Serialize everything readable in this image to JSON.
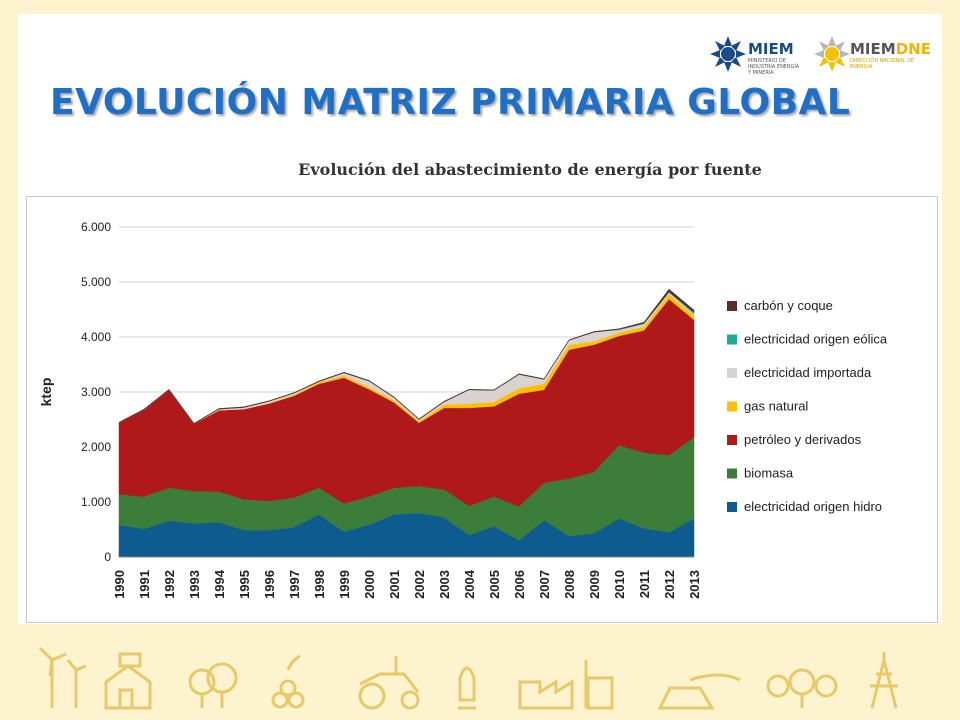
{
  "slide": {
    "title": "EVOLUCIÓN MATRIZ PRIMARIA GLOBAL",
    "logo_miem": "MIEM",
    "logo_miem_sub": "MINISTERIO DE INDUSTRIA ENERGÍA Y MINERÍA",
    "logo_dne_a": "MIEM",
    "logo_dne_b": "DNE",
    "logo_dne_sub": "DIRECCIÓN NACIONAL DE ENERGÍA"
  },
  "colors": {
    "title": "#1f6fc7",
    "hidro": "#0e5c8f",
    "biomasa": "#3c7d3a",
    "petroleo": "#b01919",
    "gas": "#ffc000",
    "importada": "#d9d3cf",
    "eolica": "#1aae96",
    "carbon": "#5a2d2d",
    "frame": "#fdf3cf",
    "deco": "#e8c968"
  },
  "chart_data": {
    "type": "area",
    "title": "Evolución del abastecimiento de energía por fuente",
    "xlabel": "",
    "ylabel": "ktep",
    "ylim": [
      0,
      6000
    ],
    "yticks": [
      0,
      1000,
      2000,
      3000,
      4000,
      5000,
      6000
    ],
    "ytick_labels": [
      "0",
      "1.000",
      "2.000",
      "3.000",
      "4.000",
      "5.000",
      "6.000"
    ],
    "grid": true,
    "stacked": true,
    "legend_position": "right",
    "categories": [
      "1990",
      "1991",
      "1992",
      "1993",
      "1994",
      "1995",
      "1996",
      "1997",
      "1998",
      "1999",
      "2000",
      "2001",
      "2002",
      "2003",
      "2004",
      "2005",
      "2006",
      "2007",
      "2008",
      "2009",
      "2010",
      "2011",
      "2012",
      "2013"
    ],
    "series": [
      {
        "name": "electricidad origen hidro",
        "color": "#0e5c8f",
        "values": [
          580,
          510,
          660,
          610,
          630,
          490,
          490,
          540,
          770,
          460,
          590,
          770,
          800,
          720,
          400,
          560,
          300,
          670,
          380,
          430,
          700,
          520,
          450,
          700
        ]
      },
      {
        "name": "biomasa",
        "color": "#3c7d3a",
        "values": [
          560,
          590,
          600,
          590,
          560,
          560,
          530,
          540,
          490,
          510,
          510,
          490,
          490,
          510,
          530,
          540,
          620,
          680,
          1050,
          1120,
          1330,
          1380,
          1400,
          1480
        ]
      },
      {
        "name": "petróleo y derivados",
        "color": "#b01919",
        "values": [
          1300,
          1580,
          1780,
          1220,
          1480,
          1640,
          1770,
          1850,
          1890,
          2290,
          1950,
          1550,
          1150,
          1480,
          1780,
          1640,
          2050,
          1690,
          2340,
          2310,
          1990,
          2220,
          2840,
          2130
        ]
      },
      {
        "name": "gas natural",
        "color": "#ffc000",
        "values": [
          0,
          0,
          0,
          0,
          0,
          0,
          10,
          20,
          30,
          40,
          40,
          40,
          30,
          60,
          80,
          80,
          100,
          110,
          90,
          60,
          60,
          70,
          90,
          80
        ]
      },
      {
        "name": "electricidad importada",
        "color": "#d9d3cf",
        "values": [
          0,
          0,
          0,
          0,
          20,
          30,
          30,
          30,
          10,
          50,
          110,
          50,
          30,
          50,
          250,
          210,
          250,
          80,
          80,
          170,
          50,
          50,
          30,
          30
        ]
      },
      {
        "name": "electricidad origen eólica",
        "color": "#1aae96",
        "values": [
          0,
          0,
          0,
          0,
          0,
          0,
          0,
          0,
          0,
          0,
          0,
          0,
          0,
          0,
          0,
          0,
          0,
          0,
          0,
          0,
          10,
          10,
          10,
          30
        ]
      },
      {
        "name": "carbón y coque",
        "color": "#5a2d2d",
        "values": [
          10,
          10,
          10,
          10,
          10,
          10,
          10,
          10,
          10,
          10,
          10,
          10,
          10,
          10,
          10,
          10,
          10,
          10,
          10,
          10,
          10,
          20,
          50,
          40
        ]
      }
    ]
  }
}
